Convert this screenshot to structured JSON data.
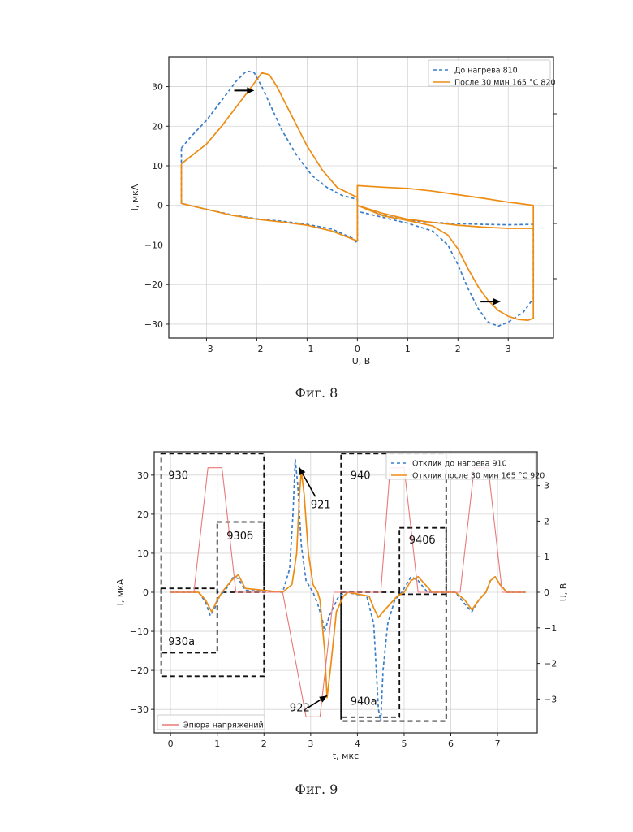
{
  "figure8": {
    "caption": "Фиг. 8",
    "chart_data": {
      "type": "line",
      "xlabel": "U, В",
      "ylabel": "I, мкА",
      "xlim": [
        -3.75,
        3.9
      ],
      "ylim": [
        -33.5,
        37.5
      ],
      "x_ticks": [
        -3,
        -2,
        -1,
        0,
        1,
        2,
        3
      ],
      "x_tick_labels": [
        "−3",
        "−2",
        "−1",
        "0",
        "1",
        "2",
        "3"
      ],
      "y_ticks": [
        -30,
        -20,
        -10,
        0,
        10,
        20,
        30
      ],
      "y_tick_labels": [
        "−30",
        "−20",
        "−10",
        "0",
        "10",
        "20",
        "30"
      ],
      "grid": true,
      "legend_position": "top-right",
      "series": [
        {
          "name": "До нагрева 810",
          "color": "#3a7dc9",
          "dash": "dashed",
          "points": [
            [
              -3.5,
              14.5
            ],
            [
              -3.3,
              17.5
            ],
            [
              -3.0,
              21.5
            ],
            [
              -2.7,
              26.5
            ],
            [
              -2.4,
              31.5
            ],
            [
              -2.2,
              34.0
            ],
            [
              -2.05,
              33.5
            ],
            [
              -1.9,
              30.0
            ],
            [
              -1.7,
              24.5
            ],
            [
              -1.5,
              19.0
            ],
            [
              -1.2,
              12.5
            ],
            [
              -0.9,
              7.5
            ],
            [
              -0.6,
              4.5
            ],
            [
              -0.3,
              2.5
            ],
            [
              0,
              1.5
            ],
            [
              0,
              -9.5
            ],
            [
              -0.1,
              -8.3
            ],
            [
              -0.5,
              -6.0
            ],
            [
              -1.0,
              -4.8
            ],
            [
              -1.5,
              -4.0
            ],
            [
              -2.0,
              -3.4
            ],
            [
              -2.5,
              -2.4
            ],
            [
              -3.0,
              -1.0
            ],
            [
              -3.5,
              0.5
            ],
            [
              -3.5,
              14.5
            ],
            null,
            [
              0,
              0
            ],
            [
              0.5,
              -2.5
            ],
            [
              1.0,
              -3.8
            ],
            [
              1.5,
              -4.3
            ],
            [
              2.0,
              -4.6
            ],
            [
              2.5,
              -4.8
            ],
            [
              3.0,
              -4.9
            ],
            [
              3.5,
              -4.8
            ],
            [
              3.5,
              -23.5
            ],
            [
              3.3,
              -27.0
            ],
            [
              3.0,
              -29.5
            ],
            [
              2.8,
              -30.5
            ],
            [
              2.6,
              -29.5
            ],
            [
              2.4,
              -26.0
            ],
            [
              2.2,
              -21.0
            ],
            [
              2.0,
              -15.0
            ],
            [
              1.8,
              -10.0
            ],
            [
              1.5,
              -6.5
            ],
            [
              1.0,
              -4.5
            ],
            [
              0.5,
              -3.0
            ],
            [
              0,
              -1.5
            ]
          ]
        },
        {
          "name": "После 30 мин 165 °C 820",
          "color": "#ee8c12",
          "dash": "solid",
          "points": [
            [
              -3.5,
              10.5
            ],
            [
              -3.3,
              12.5
            ],
            [
              -3.0,
              15.5
            ],
            [
              -2.7,
              20.0
            ],
            [
              -2.4,
              25.0
            ],
            [
              -2.1,
              30.0
            ],
            [
              -1.9,
              33.5
            ],
            [
              -1.75,
              33.0
            ],
            [
              -1.6,
              30.0
            ],
            [
              -1.4,
              25.0
            ],
            [
              -1.2,
              20.0
            ],
            [
              -1.0,
              15.0
            ],
            [
              -0.7,
              9.0
            ],
            [
              -0.4,
              4.5
            ],
            [
              0,
              2.0
            ],
            [
              0,
              -9.0
            ],
            [
              -0.5,
              -6.5
            ],
            [
              -1.0,
              -5.0
            ],
            [
              -1.5,
              -4.2
            ],
            [
              -2.0,
              -3.5
            ],
            [
              -2.5,
              -2.5
            ],
            [
              -3.0,
              -1.0
            ],
            [
              -3.5,
              0.5
            ],
            [
              -3.5,
              10.5
            ],
            null,
            [
              0,
              0
            ],
            [
              0,
              5.0
            ],
            [
              0.5,
              4.6
            ],
            [
              1.0,
              4.3
            ],
            [
              1.5,
              3.6
            ],
            [
              2.0,
              2.7
            ],
            [
              2.5,
              1.8
            ],
            [
              3.0,
              0.8
            ],
            [
              3.5,
              0
            ],
            [
              3.5,
              -5.8
            ],
            [
              3.0,
              -5.8
            ],
            [
              2.5,
              -5.5
            ],
            [
              2.0,
              -5.0
            ],
            [
              1.5,
              -4.3
            ],
            [
              1.0,
              -3.5
            ],
            [
              0.5,
              -2.0
            ],
            [
              0,
              0
            ],
            null,
            [
              0,
              0
            ],
            [
              0.5,
              -2.6
            ],
            [
              1.0,
              -3.8
            ],
            [
              1.5,
              -5.2
            ],
            [
              1.8,
              -7.5
            ],
            [
              2.0,
              -11.0
            ],
            [
              2.2,
              -16.0
            ],
            [
              2.4,
              -20.5
            ],
            [
              2.6,
              -24.0
            ],
            [
              2.8,
              -26.5
            ],
            [
              3.0,
              -28.0
            ],
            [
              3.2,
              -28.8
            ],
            [
              3.4,
              -29.0
            ],
            [
              3.5,
              -28.5
            ],
            [
              3.5,
              -6.0
            ]
          ]
        }
      ],
      "arrows": [
        {
          "from": [
            -2.45,
            29.0
          ],
          "to": [
            -2.05,
            29.0
          ]
        },
        {
          "from": [
            2.45,
            -24.3
          ],
          "to": [
            2.85,
            -24.3
          ]
        }
      ]
    }
  },
  "figure9": {
    "caption": "Фиг. 9",
    "chart_data": {
      "type": "line",
      "xlabel": "t, мкс",
      "ylabel": "I, мкА",
      "y2label": "U, В",
      "xlim": [
        -0.35,
        7.85
      ],
      "ylim": [
        -36,
        36
      ],
      "y2lim": [
        -3.95,
        3.95
      ],
      "x_ticks": [
        0,
        1,
        2,
        3,
        4,
        5,
        6,
        7
      ],
      "x_tick_labels": [
        "0",
        "1",
        "2",
        "3",
        "4",
        "5",
        "6",
        "7"
      ],
      "y_ticks": [
        -30,
        -20,
        -10,
        0,
        10,
        20,
        30
      ],
      "y_tick_labels": [
        "−30",
        "−20",
        "−10",
        "0",
        "10",
        "20",
        "30"
      ],
      "y2_ticks": [
        -3,
        -2,
        -1,
        0,
        1,
        2,
        3
      ],
      "y2_tick_labels": [
        "−3",
        "−2",
        "−1",
        "0",
        "1",
        "2",
        "3"
      ],
      "grid": true,
      "legend_position": "top-right",
      "legend2_position": "bottom-left",
      "series": [
        {
          "name": "Отклик до нагрева 910",
          "color": "#3a7dc9",
          "dash": "dashed",
          "axis": "left",
          "points": [
            [
              0,
              0
            ],
            [
              0.6,
              0
            ],
            [
              0.75,
              -2.5
            ],
            [
              0.85,
              -6
            ],
            [
              0.95,
              -4
            ],
            [
              1.05,
              -1
            ],
            [
              1.2,
              1
            ],
            [
              1.35,
              4
            ],
            [
              1.45,
              3.5
            ],
            [
              1.6,
              0.5
            ],
            [
              2.4,
              0
            ],
            [
              2.55,
              6
            ],
            [
              2.62,
              20
            ],
            [
              2.67,
              34
            ],
            [
              2.72,
              28
            ],
            [
              2.8,
              12
            ],
            [
              2.9,
              3
            ],
            [
              3.05,
              0
            ],
            [
              3.15,
              -3
            ],
            [
              3.25,
              -7
            ],
            [
              3.3,
              -10
            ],
            [
              3.4,
              -6
            ],
            [
              3.6,
              -1
            ],
            [
              3.75,
              0
            ],
            [
              4.2,
              -1
            ],
            [
              4.35,
              -8
            ],
            [
              4.45,
              -30
            ],
            [
              4.5,
              -33
            ],
            [
              4.55,
              -20
            ],
            [
              4.65,
              -8
            ],
            [
              4.8,
              -2
            ],
            [
              4.95,
              0
            ],
            [
              5.15,
              4
            ],
            [
              5.3,
              3
            ],
            [
              5.5,
              0
            ],
            [
              6.1,
              0
            ],
            [
              6.3,
              -3
            ],
            [
              6.45,
              -5
            ],
            [
              6.6,
              -2
            ],
            [
              6.75,
              0
            ],
            [
              6.85,
              3
            ],
            [
              6.95,
              4
            ],
            [
              7.05,
              2
            ],
            [
              7.2,
              0
            ],
            [
              7.6,
              0
            ]
          ]
        },
        {
          "name": "Отклик после 30 мин 165 °C 920",
          "color": "#ee8c12",
          "dash": "solid",
          "axis": "left",
          "points": [
            [
              0,
              0
            ],
            [
              0.6,
              0
            ],
            [
              0.75,
              -2
            ],
            [
              0.88,
              -5
            ],
            [
              1.0,
              -2
            ],
            [
              1.1,
              0
            ],
            [
              1.3,
              3
            ],
            [
              1.45,
              4.5
            ],
            [
              1.6,
              1
            ],
            [
              2.4,
              0
            ],
            [
              2.6,
              2
            ],
            [
              2.7,
              10
            ],
            [
              2.76,
              25
            ],
            [
              2.8,
              31
            ],
            [
              2.86,
              25
            ],
            [
              2.95,
              10
            ],
            [
              3.05,
              2
            ],
            [
              3.15,
              0
            ],
            [
              3.2,
              -2
            ],
            [
              3.3,
              -15
            ],
            [
              3.35,
              -27
            ],
            [
              3.42,
              -20
            ],
            [
              3.55,
              -5
            ],
            [
              3.7,
              -1
            ],
            [
              3.8,
              0
            ],
            [
              4.25,
              -1
            ],
            [
              4.35,
              -4
            ],
            [
              4.45,
              -6.5
            ],
            [
              4.55,
              -5
            ],
            [
              4.7,
              -3
            ],
            [
              4.85,
              -1
            ],
            [
              5.0,
              0
            ],
            [
              5.15,
              3
            ],
            [
              5.3,
              4
            ],
            [
              5.45,
              2
            ],
            [
              5.6,
              0
            ],
            [
              6.1,
              0
            ],
            [
              6.3,
              -2
            ],
            [
              6.45,
              -4.5
            ],
            [
              6.6,
              -2
            ],
            [
              6.75,
              0
            ],
            [
              6.85,
              3
            ],
            [
              6.95,
              4
            ],
            [
              7.05,
              2
            ],
            [
              7.2,
              0
            ],
            [
              7.6,
              0
            ]
          ]
        },
        {
          "name": "Эпюра напряжений",
          "color": "#e9787a",
          "dash": "solid",
          "axis": "right",
          "points": [
            [
              0,
              0
            ],
            [
              0.5,
              0
            ],
            [
              0.8,
              3.5
            ],
            [
              1.1,
              3.5
            ],
            [
              1.4,
              0
            ],
            [
              2.4,
              0
            ],
            [
              2.9,
              -3.5
            ],
            [
              3.2,
              -3.5
            ],
            [
              3.5,
              0
            ],
            [
              4.5,
              0
            ],
            [
              4.7,
              3.5
            ],
            [
              5.0,
              3.5
            ],
            [
              5.3,
              0
            ],
            [
              6.2,
              0
            ],
            [
              6.5,
              3.5
            ],
            [
              6.8,
              3.5
            ],
            [
              7.1,
              0
            ],
            [
              7.6,
              0
            ]
          ]
        }
      ],
      "regions": [
        {
          "label": "930",
          "x": [
            -0.2,
            2.0
          ],
          "y": [
            -21.5,
            35.5
          ]
        },
        {
          "label": "930a",
          "x": [
            -0.2,
            1.0
          ],
          "y": [
            -15.5,
            1.0
          ]
        },
        {
          "label": "930б",
          "x": [
            1.0,
            2.0
          ],
          "y": [
            0.0,
            18.0
          ]
        },
        {
          "label": "940",
          "x": [
            3.65,
            5.9
          ],
          "y": [
            -33.0,
            35.5
          ]
        },
        {
          "label": "940a",
          "x": [
            3.65,
            4.9
          ],
          "y": [
            -32.0,
            0.0
          ]
        },
        {
          "label": "940б",
          "x": [
            4.9,
            5.9
          ],
          "y": [
            -0.5,
            16.5
          ]
        }
      ],
      "annotations": [
        {
          "label": "921",
          "tip": [
            2.75,
            32.0
          ],
          "tail": [
            3.1,
            24.5
          ],
          "text": [
            3.0,
            21.5
          ]
        },
        {
          "label": "922",
          "tip": [
            3.35,
            -26.5
          ],
          "tail": [
            2.95,
            -29.5
          ],
          "text": [
            2.55,
            -30.5
          ]
        }
      ]
    }
  }
}
